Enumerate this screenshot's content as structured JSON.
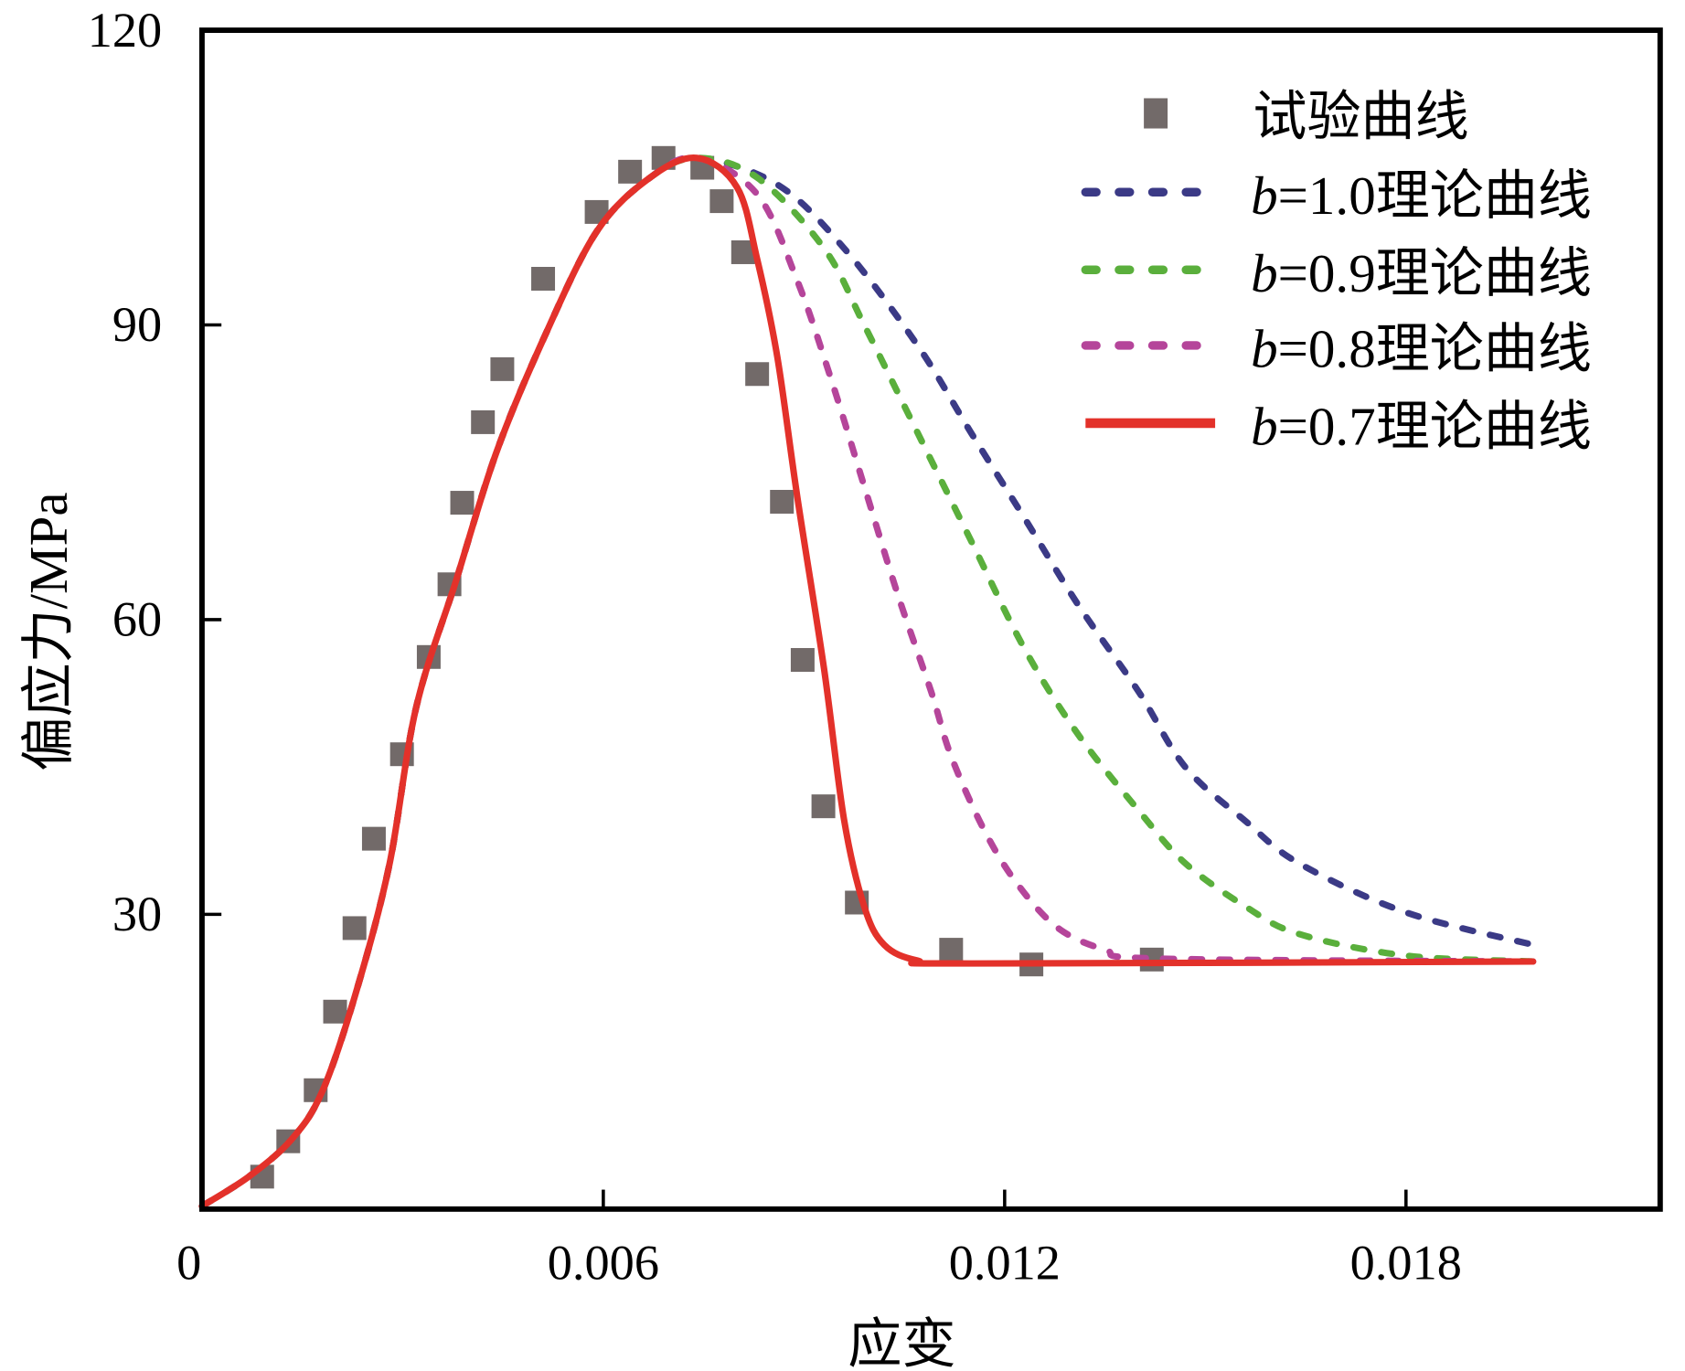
{
  "chart_data": {
    "type": "line",
    "title": "",
    "xlabel": "应变",
    "ylabel": "偏应力/MPa",
    "xlim": [
      0,
      0.0218
    ],
    "ylim": [
      0,
      120
    ],
    "xticks": [
      0,
      0.006,
      0.012,
      0.018
    ],
    "xtick_labels": [
      "0",
      "0.006",
      "0.012",
      "0.018"
    ],
    "yticks": [
      30,
      60,
      90,
      120
    ],
    "ytick_labels": [
      "30",
      "60",
      "90",
      "120"
    ],
    "grid": false,
    "legend_position": "top-right",
    "series": [
      {
        "name": "试验曲线",
        "style": "scatter-square",
        "color": "#726a69",
        "x": [
          0.0009,
          0.00129,
          0.0017,
          0.00199,
          0.00228,
          0.00257,
          0.00299,
          0.00339,
          0.0037,
          0.00389,
          0.0042,
          0.00449,
          0.0051,
          0.0059,
          0.0064,
          0.0069,
          0.00748,
          0.00777,
          0.00809,
          0.0083,
          0.00867,
          0.00898,
          0.00929,
          0.00979,
          0.0112,
          0.0124,
          0.0142
        ],
        "y": [
          3.3,
          6.9,
          12.1,
          20.1,
          28.6,
          37.7,
          46.3,
          56.2,
          63.6,
          71.9,
          80.1,
          85.5,
          94.7,
          101.5,
          105.6,
          107.0,
          106.0,
          102.6,
          97.4,
          85.0,
          72.0,
          55.9,
          41.0,
          31.2,
          26.4,
          24.9,
          25.4
        ]
      },
      {
        "name": "b=1.0理论曲线",
        "prefix": "b",
        "suffix": "=1.0理论曲线",
        "style": "dashed",
        "color": "#3b3a86",
        "x": [
          0,
          0.0007,
          0.00134,
          0.0018,
          0.0023,
          0.0028,
          0.0032,
          0.0038,
          0.0044,
          0.0051,
          0.0059,
          0.0067,
          0.0074,
          0.0086,
          0.0096,
          0.0107,
          0.0115,
          0.0123,
          0.0131,
          0.014,
          0.0147,
          0.0156,
          0.0164,
          0.018,
          0.0199
        ],
        "y": [
          0.3,
          3.3,
          7.1,
          12,
          22,
          35,
          51,
          64,
          77,
          88.5,
          99.5,
          105,
          107,
          104.3,
          97.8,
          87.9,
          79,
          70.3,
          61.5,
          52.7,
          45,
          39.5,
          35.2,
          30.2,
          26.9
        ]
      },
      {
        "name": "b=0.9理论曲线",
        "prefix": "b",
        "suffix": "=0.9理论曲线",
        "style": "dashed",
        "color": "#5aaf3c",
        "x": [
          0,
          0.0007,
          0.00134,
          0.0018,
          0.0023,
          0.0028,
          0.0032,
          0.0038,
          0.0044,
          0.0051,
          0.0059,
          0.0067,
          0.0074,
          0.0083,
          0.0093,
          0.0099,
          0.0107,
          0.0115,
          0.0123,
          0.0131,
          0.014,
          0.0147,
          0.0156,
          0.0164,
          0.018,
          0.0199
        ],
        "y": [
          0.3,
          3.3,
          7.1,
          12,
          22,
          35,
          51,
          64,
          77,
          88.5,
          99.5,
          105,
          107,
          105,
          97.8,
          90,
          79,
          68,
          57,
          48.3,
          40.6,
          35.2,
          30.8,
          28,
          25.8,
          25.2
        ]
      },
      {
        "name": "b=0.8理论曲线",
        "prefix": "b",
        "suffix": "=0.8理论曲线",
        "style": "dashed",
        "color": "#b5459a",
        "x": [
          0,
          0.0007,
          0.00134,
          0.0018,
          0.0023,
          0.0028,
          0.0032,
          0.0038,
          0.0044,
          0.0051,
          0.0059,
          0.0067,
          0.0074,
          0.0083,
          0.0089,
          0.0094,
          0.0099,
          0.0104,
          0.0109,
          0.0112,
          0.0117,
          0.0122,
          0.0128,
          0.0135,
          0.0143,
          0.0199
        ],
        "y": [
          0.3,
          3.3,
          7.1,
          12,
          22,
          35,
          51,
          64,
          77,
          88.5,
          99.5,
          105,
          107,
          103.3,
          94.5,
          84.6,
          73.6,
          62.6,
          52.7,
          46.1,
          38.5,
          33,
          28.6,
          26.4,
          25.5,
          25.2
        ]
      },
      {
        "name": "b=0.7理论曲线",
        "prefix": "b",
        "suffix": "=0.7理论曲线",
        "style": "solid",
        "color": "#e3312a",
        "x": [
          0,
          0.0007,
          0.00134,
          0.0018,
          0.0023,
          0.0028,
          0.0032,
          0.0038,
          0.0044,
          0.0051,
          0.0059,
          0.0067,
          0.0074,
          0.008,
          0.0083,
          0.0086,
          0.0089,
          0.0093,
          0.0096,
          0.0099,
          0.0102,
          0.0107,
          0.0115,
          0.0199
        ],
        "y": [
          0.3,
          3.3,
          7.1,
          12,
          22,
          35,
          51,
          64,
          77,
          88.5,
          99.5,
          105,
          107,
          104,
          96.7,
          86.8,
          72.5,
          55,
          39.6,
          30.8,
          26.9,
          25.3,
          25,
          25.2
        ]
      }
    ]
  }
}
